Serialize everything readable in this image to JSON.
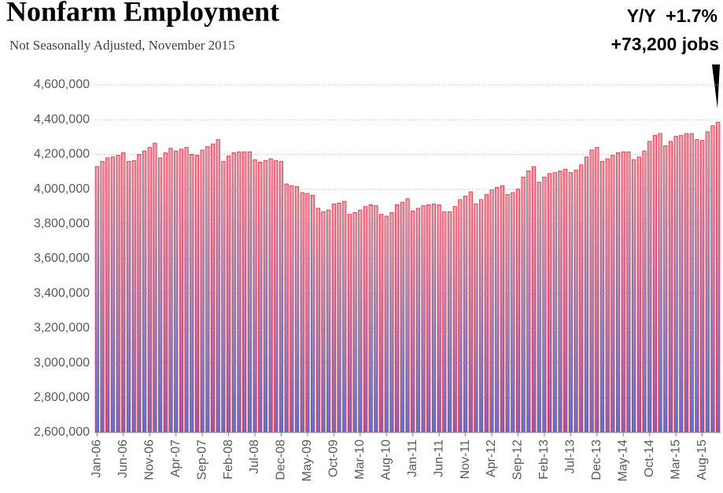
{
  "chart_data": {
    "type": "bar",
    "title": "Nonfarm Employment",
    "subtitle": "Not Seasonally Adjusted, November 2015",
    "annotations": [
      "Y/Y  +1.7%",
      "+73,200 jobs"
    ],
    "categories": [
      "Jan-06",
      null,
      null,
      null,
      null,
      "Jun-06",
      null,
      null,
      null,
      null,
      "Nov-06",
      null,
      null,
      null,
      null,
      "Apr-07",
      null,
      null,
      null,
      null,
      "Sep-07",
      null,
      null,
      null,
      null,
      "Feb-08",
      null,
      null,
      null,
      null,
      "Jul-08",
      null,
      null,
      null,
      null,
      "Dec-08",
      null,
      null,
      null,
      null,
      "May-09",
      null,
      null,
      null,
      null,
      "Oct-09",
      null,
      null,
      null,
      null,
      "Mar-10",
      null,
      null,
      null,
      null,
      "Aug-10",
      null,
      null,
      null,
      null,
      "Jan-11",
      null,
      null,
      null,
      null,
      "Jun-11",
      null,
      null,
      null,
      null,
      "Nov-11",
      null,
      null,
      null,
      null,
      "Apr-12",
      null,
      null,
      null,
      null,
      "Sep-12",
      null,
      null,
      null,
      null,
      "Feb-13",
      null,
      null,
      null,
      null,
      "Jul-13",
      null,
      null,
      null,
      null,
      "Dec-13",
      null,
      null,
      null,
      null,
      "May-14",
      null,
      null,
      null,
      null,
      "Oct-14",
      null,
      null,
      null,
      null,
      "Mar-15",
      null,
      null,
      null,
      null,
      "Aug-15",
      null,
      null,
      null
    ],
    "values": [
      4130000,
      4160000,
      4180000,
      4185000,
      4195000,
      4210000,
      4160000,
      4165000,
      4200000,
      4220000,
      4240000,
      4265000,
      4180000,
      4210000,
      4235000,
      4220000,
      4230000,
      4240000,
      4200000,
      4195000,
      4225000,
      4245000,
      4260000,
      4285000,
      4160000,
      4190000,
      4210000,
      4215000,
      4215000,
      4215000,
      4170000,
      4155000,
      4165000,
      4175000,
      4165000,
      4160000,
      4030000,
      4020000,
      4015000,
      3980000,
      3975000,
      3965000,
      3890000,
      3870000,
      3880000,
      3915000,
      3920000,
      3930000,
      3855000,
      3865000,
      3880000,
      3900000,
      3910000,
      3905000,
      3855000,
      3845000,
      3865000,
      3910000,
      3925000,
      3945000,
      3875000,
      3890000,
      3905000,
      3910000,
      3915000,
      3910000,
      3870000,
      3870000,
      3900000,
      3940000,
      3960000,
      3985000,
      3915000,
      3940000,
      3970000,
      3995000,
      4010000,
      4020000,
      3970000,
      3980000,
      4000000,
      4070000,
      4105000,
      4130000,
      4040000,
      4070000,
      4090000,
      4095000,
      4105000,
      4115000,
      4095000,
      4110000,
      4140000,
      4185000,
      4225000,
      4240000,
      4160000,
      4175000,
      4195000,
      4210000,
      4215000,
      4215000,
      4170000,
      4185000,
      4220000,
      4275000,
      4310000,
      4320000,
      4250000,
      4275000,
      4305000,
      4310000,
      4320000,
      4320000,
      4285000,
      4280000,
      4330000,
      4365000,
      4385000
    ],
    "color": "#d8283c",
    "ylim": [
      2600000,
      4600000
    ],
    "yticks": [
      {
        "value": 2600000,
        "label": "2,600,000"
      },
      {
        "value": 2800000,
        "label": "2,800,000"
      },
      {
        "value": 3000000,
        "label": "3,000,000"
      },
      {
        "value": 3200000,
        "label": "3,200,000"
      },
      {
        "value": 3400000,
        "label": "3,400,000"
      },
      {
        "value": 3600000,
        "label": "3,600,000"
      },
      {
        "value": 3800000,
        "label": "3,800,000"
      },
      {
        "value": 4000000,
        "label": "4,000,000"
      },
      {
        "value": 4200000,
        "label": "4,200,000"
      },
      {
        "value": 4400000,
        "label": "4,400,000"
      },
      {
        "value": 4600000,
        "label": "4,600,000"
      }
    ],
    "grid": true
  }
}
